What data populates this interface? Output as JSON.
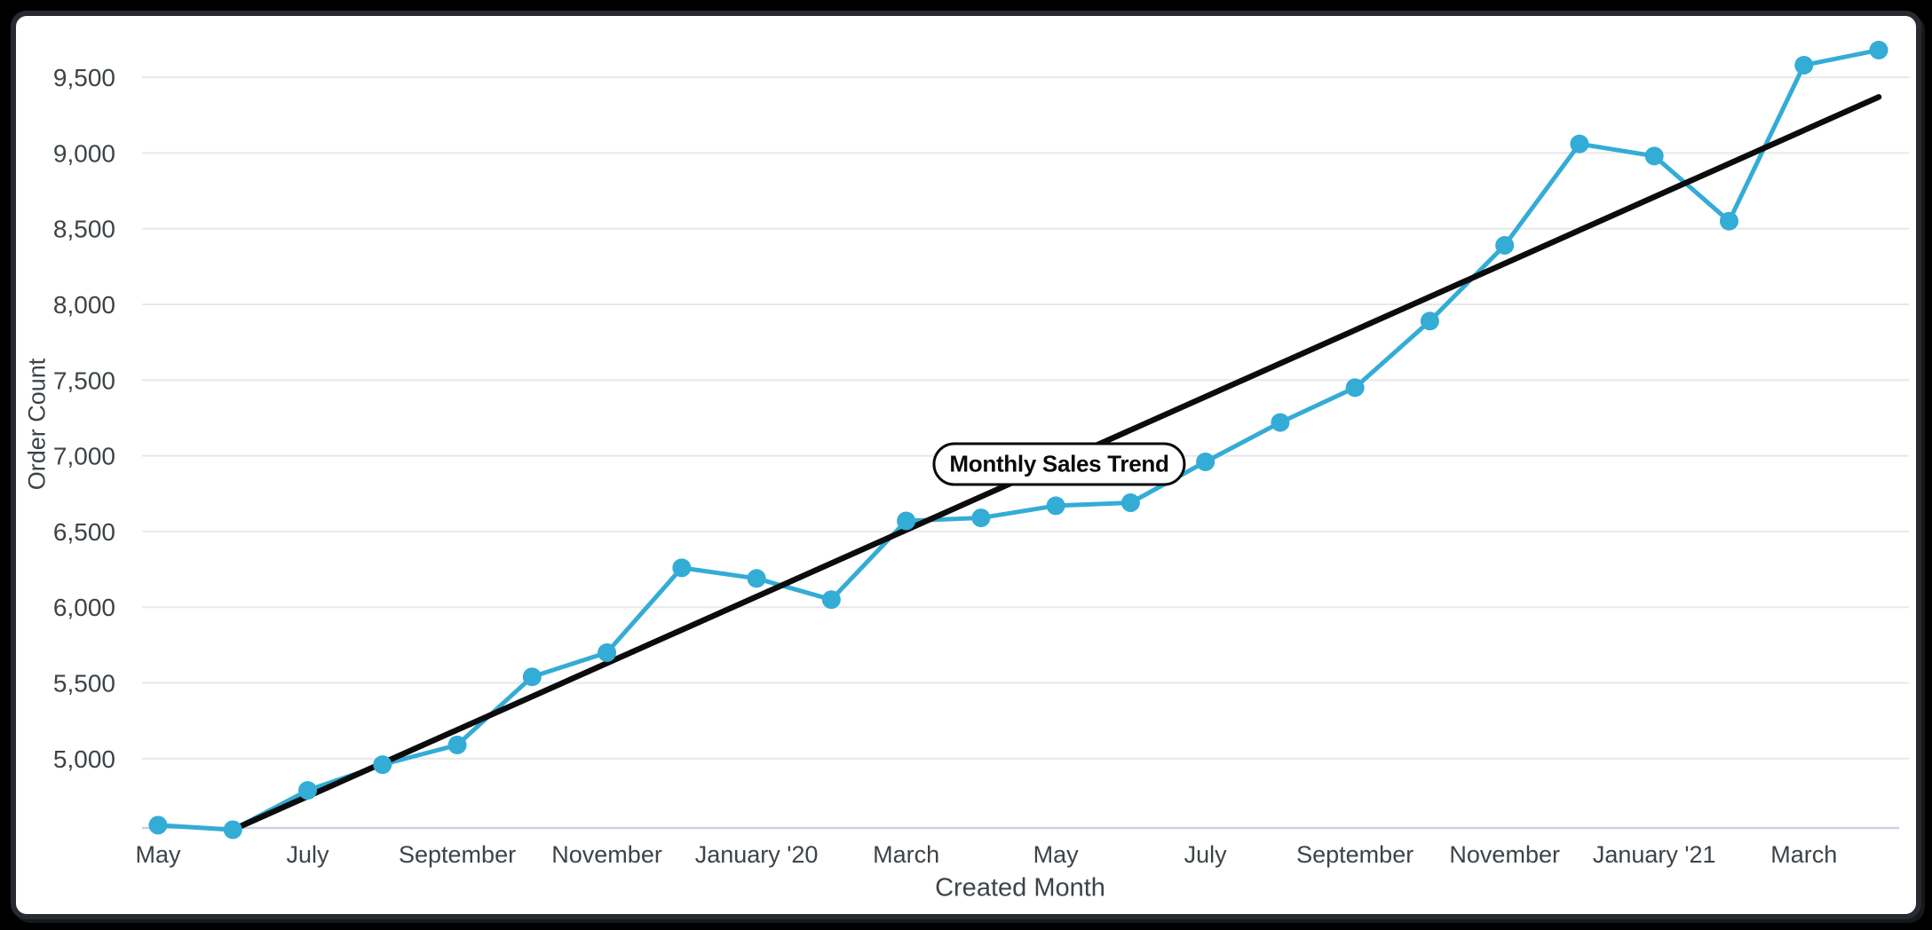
{
  "colors": {
    "series": "#33ACD6",
    "trendline": "#0c0c0c",
    "gridline": "#e8e8e8",
    "axis_line": "#c9d1e3",
    "text": "#3d4347",
    "card_background": "#ffffff",
    "card_border": "#272b2f",
    "page_background": "#000000"
  },
  "chart_data": {
    "type": "line",
    "title": "Monthly Sales Trend",
    "xlabel": "Created Month",
    "ylabel": "Order Count",
    "n_points": 24,
    "x_range_note": "monthly points, May 2019 through April 2021",
    "x_tick_every": 2,
    "x_tick_labels": [
      "May",
      "July",
      "September",
      "November",
      "January '20",
      "March",
      "May",
      "July",
      "September",
      "November",
      "January '21",
      "March"
    ],
    "yticks": [
      5000,
      5500,
      6000,
      6500,
      7000,
      7500,
      8000,
      8500,
      9000,
      9500
    ],
    "ytick_labels": [
      "5,000",
      "5,500",
      "6,000",
      "6,500",
      "7,000",
      "7,500",
      "8,000",
      "8,500",
      "9,000",
      "9,500"
    ],
    "ylim": [
      4530,
      9890
    ],
    "grid": true,
    "legend_position": "none",
    "series": [
      {
        "name": "Order Count",
        "color": "#33ACD6",
        "values": [
          4560,
          4530,
          4790,
          4960,
          5090,
          5540,
          5700,
          6260,
          6190,
          6050,
          6570,
          6590,
          6670,
          6690,
          6960,
          7220,
          7450,
          7890,
          8390,
          9060,
          8980,
          8550,
          9580,
          9680
        ]
      }
    ],
    "trendline": {
      "label": "Monthly Sales Trend",
      "color": "#0c0c0c",
      "from": {
        "index": 1,
        "value": 4530
      },
      "to": {
        "index": 23,
        "value": 9370
      }
    }
  }
}
